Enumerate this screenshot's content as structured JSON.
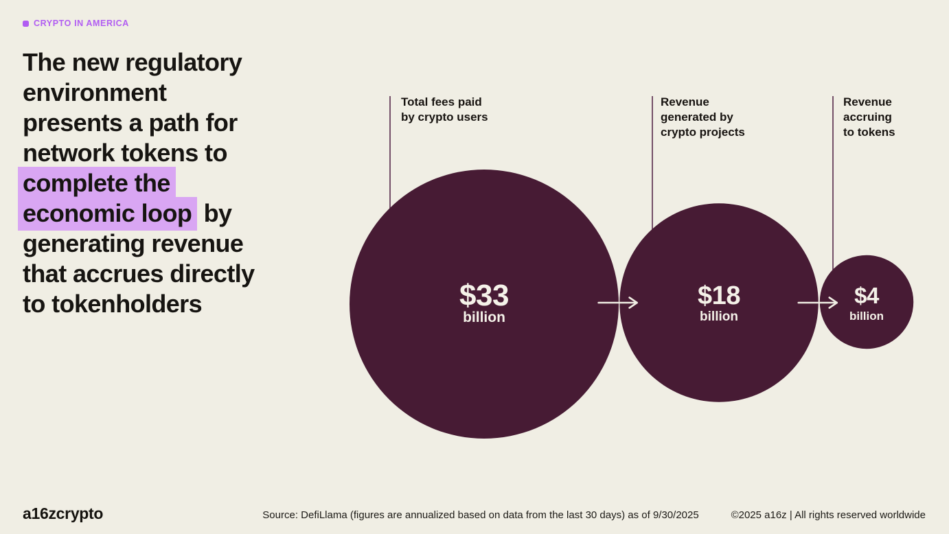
{
  "tag": {
    "label": "CRYPTO IN AMERICA"
  },
  "headline": {
    "full_text": "The new regulatory environment presents a path for network tokens to complete the economic loop by generating revenue that accrues directly to tokenholders",
    "highlighted_phrase": "complete the economic loop",
    "lines": [
      [
        {
          "t": "The new regulatory"
        }
      ],
      [
        {
          "t": "environment"
        }
      ],
      [
        {
          "t": "presents a path for"
        }
      ],
      [
        {
          "t": "network tokens to"
        }
      ],
      [
        {
          "t": "complete the",
          "hl": true
        }
      ],
      [
        {
          "t": "economic loop",
          "hl": true
        },
        {
          "t": " by"
        }
      ],
      [
        {
          "t": "generating revenue"
        }
      ],
      [
        {
          "t": "that accrues directly"
        }
      ],
      [
        {
          "t": "to tokenholders"
        }
      ]
    ]
  },
  "chart_data": {
    "type": "bubble",
    "flow": "left-to-right arrows between bubbles",
    "scaling": "bubble area proportional to value",
    "unit_label": "billion",
    "categories": [
      "Total fees paid by crypto users",
      "Revenue generated by crypto projects",
      "Revenue accruing to tokens"
    ],
    "values": [
      33,
      18,
      4
    ],
    "items": [
      {
        "label": "Total fees paid\nby crypto users",
        "value": 33,
        "display_value": "$33",
        "display_unit": "billion"
      },
      {
        "label": "Revenue\ngenerated by\ncrypto projects",
        "value": 18,
        "display_value": "$18",
        "display_unit": "billion"
      },
      {
        "label": "Revenue\naccruing\nto tokens",
        "value": 4,
        "display_value": "$4",
        "display_unit": "billion"
      }
    ]
  },
  "colors": {
    "background": "#F0EEE4",
    "bubble": "#471B34",
    "drop_line": "#56294A",
    "arrow": "#F0EEE4",
    "highlight": "#D9A6F3",
    "accent_purple": "#B15CF2",
    "headline_text": "#161411",
    "bubble_text": "#F5F2E9"
  },
  "footer": {
    "logo": "a16zcrypto",
    "source": "Source: DefiLlama (figures are annualized based on data from the last 30 days) as of 9/30/2025",
    "copyright": "©2025 a16z | All rights reserved worldwide"
  }
}
